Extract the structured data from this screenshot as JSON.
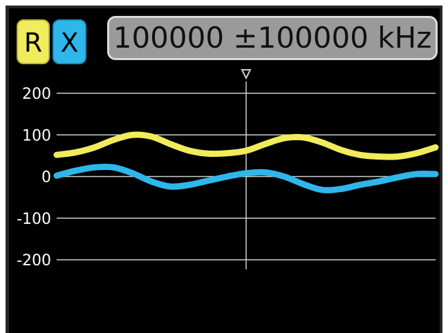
{
  "legend": {
    "r_label": "R",
    "x_label": "X"
  },
  "frequency_readout": "100000 ±100000 kHz",
  "colors": {
    "r_trace": "#f0ec5c",
    "x_trace": "#2fb7ea",
    "grid": "#d0d0d0",
    "background": "#000000"
  },
  "marker_icon": "triangle-down-icon",
  "chart_data": {
    "type": "line",
    "ylim": [
      -200,
      200
    ],
    "yticks": [
      "200",
      "100",
      "0",
      "-100",
      "-200"
    ],
    "ytick_values": [
      200,
      100,
      0,
      -100,
      -200
    ],
    "x": [
      0,
      0.05,
      0.1,
      0.15,
      0.2,
      0.25,
      0.3,
      0.35,
      0.4,
      0.45,
      0.5,
      0.55,
      0.6,
      0.65,
      0.7,
      0.75,
      0.8,
      0.85,
      0.9,
      0.95,
      1.0
    ],
    "series": [
      {
        "name": "R",
        "values": [
          52,
          58,
          70,
          88,
          100,
          96,
          78,
          62,
          55,
          56,
          62,
          78,
          92,
          94,
          82,
          64,
          52,
          48,
          48,
          56,
          70
        ]
      },
      {
        "name": "X",
        "values": [
          2,
          14,
          22,
          22,
          8,
          -12,
          -24,
          -20,
          -10,
          0,
          8,
          10,
          0,
          -18,
          -32,
          -30,
          -20,
          -12,
          -2,
          6,
          6
        ]
      }
    ],
    "marker_position": 0.5,
    "grid": true
  }
}
